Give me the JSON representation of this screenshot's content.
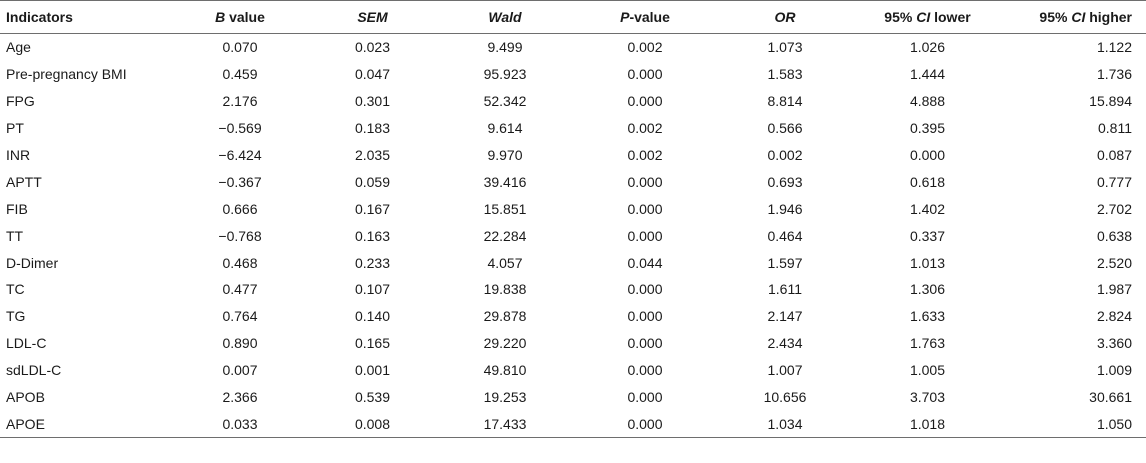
{
  "headers": [
    {
      "it": "",
      "rest": "Indicators"
    },
    {
      "it": "B",
      "rest": " value"
    },
    {
      "it": "SEM",
      "rest": ""
    },
    {
      "it": "Wald",
      "rest": ""
    },
    {
      "it": "P",
      "rest": "-value"
    },
    {
      "it": "OR",
      "rest": ""
    },
    {
      "pre": "95% ",
      "it": "CI",
      "rest": " lower"
    },
    {
      "pre": "95% ",
      "it": "CI",
      "rest": " higher"
    }
  ],
  "rows": [
    [
      "Age",
      "0.070",
      "0.023",
      "9.499",
      "0.002",
      "1.073",
      "1.026",
      "1.122"
    ],
    [
      "Pre-pregnancy BMI",
      "0.459",
      "0.047",
      "95.923",
      "0.000",
      "1.583",
      "1.444",
      "1.736"
    ],
    [
      "FPG",
      "2.176",
      "0.301",
      "52.342",
      "0.000",
      "8.814",
      "4.888",
      "15.894"
    ],
    [
      "PT",
      "−0.569",
      "0.183",
      "9.614",
      "0.002",
      "0.566",
      "0.395",
      "0.811"
    ],
    [
      "INR",
      "−6.424",
      "2.035",
      "9.970",
      "0.002",
      "0.002",
      "0.000",
      "0.087"
    ],
    [
      "APTT",
      "−0.367",
      "0.059",
      "39.416",
      "0.000",
      "0.693",
      "0.618",
      "0.777"
    ],
    [
      "FIB",
      "0.666",
      "0.167",
      "15.851",
      "0.000",
      "1.946",
      "1.402",
      "2.702"
    ],
    [
      "TT",
      "−0.768",
      "0.163",
      "22.284",
      "0.000",
      "0.464",
      "0.337",
      "0.638"
    ],
    [
      "D-Dimer",
      "0.468",
      "0.233",
      "4.057",
      "0.044",
      "1.597",
      "1.013",
      "2.520"
    ],
    [
      "TC",
      "0.477",
      "0.107",
      "19.838",
      "0.000",
      "1.611",
      "1.306",
      "1.987"
    ],
    [
      "TG",
      "0.764",
      "0.140",
      "29.878",
      "0.000",
      "2.147",
      "1.633",
      "2.824"
    ],
    [
      "LDL-C",
      "0.890",
      "0.165",
      "29.220",
      "0.000",
      "2.434",
      "1.763",
      "3.360"
    ],
    [
      "sdLDL-C",
      "0.007",
      "0.001",
      "49.810",
      "0.000",
      "1.007",
      "1.005",
      "1.009"
    ],
    [
      "APOB",
      "2.366",
      "0.539",
      "19.253",
      "0.000",
      "10.656",
      "3.703",
      "30.661"
    ],
    [
      "APOE",
      "0.033",
      "0.008",
      "17.433",
      "0.000",
      "1.034",
      "1.018",
      "1.050"
    ]
  ]
}
